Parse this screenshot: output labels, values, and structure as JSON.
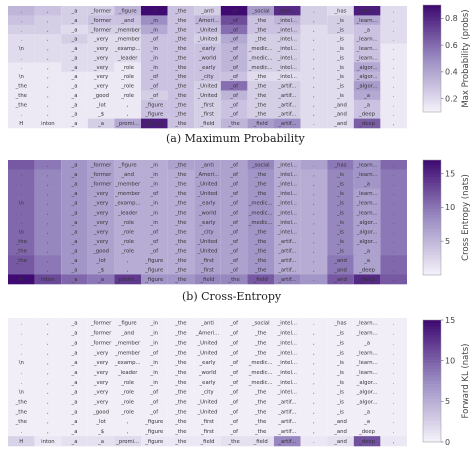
{
  "chart_data": {
    "type": "heatmap",
    "tokens": [
      [
        ".",
        ",",
        "_a",
        "_former",
        "_figure",
        "_in",
        "_the",
        "_anti",
        "_of",
        "_social",
        "_intel...",
        ".",
        "_has",
        "_learn...",
        "."
      ],
      [
        ".",
        ",",
        "_a",
        "_former",
        "_and",
        "_in",
        "_the",
        "_Ameri...",
        "_of",
        "_the",
        "_intel...",
        ",",
        "_is",
        "_learn...",
        "."
      ],
      [
        ".",
        ",",
        "_a",
        "_former",
        "_member",
        "_in",
        "_the",
        "_United",
        "_of",
        "_the",
        "_intel...",
        ",",
        "_is",
        "_a",
        "."
      ],
      [
        ".",
        ",",
        "_a",
        "_very",
        "_member",
        "_of",
        "_the",
        "_United",
        "_of",
        "_the",
        "_intel...",
        ",",
        "_is",
        "_learn...",
        "."
      ],
      [
        "\\n",
        ",",
        "_a",
        "_very",
        "_examp...",
        "_in",
        "_the",
        "_early",
        "_of",
        "_medic...",
        "_intel...",
        ",",
        "_is",
        "_learn...",
        "."
      ],
      [
        ".",
        ",",
        "_a",
        "_very",
        "_leader",
        "_in",
        "_the",
        "_world",
        "_of",
        "_medic...",
        "_intel...",
        ",",
        "_is",
        "_learn...",
        "."
      ],
      [
        ".",
        ",",
        "_a",
        "_very",
        "_role",
        "_in",
        "_the",
        "_early",
        "_of",
        "_medic...",
        "_intel...",
        ",",
        "_is",
        "_algor...",
        "."
      ],
      [
        "\\n",
        ",",
        "_a",
        "_very",
        "_role",
        "_of",
        "_the",
        "_city",
        "_of",
        "_the",
        "_intel...",
        ",",
        "_is",
        "_algor...",
        "."
      ],
      [
        "_the",
        ",",
        "_a",
        "_very",
        "_role",
        "_of",
        "_the",
        "_United",
        "_of",
        "_the",
        "_artif...",
        ",",
        "_is",
        "_algor...",
        "."
      ],
      [
        "_the",
        ",",
        "_a",
        "_good",
        "_role",
        "_of",
        "_the",
        "_United",
        "_of",
        "_the",
        "_artif...",
        ",",
        "_is",
        "_a",
        "."
      ],
      [
        "_the",
        ",",
        "_a",
        "_lot",
        ",",
        "_figure",
        "_the",
        "_first",
        "_of",
        "_the",
        "_artif...",
        ",",
        "_and",
        "_a",
        "."
      ],
      [
        ".",
        ",",
        "_a",
        "_$",
        ",",
        "_figure",
        "_the",
        "_first",
        "_of",
        "_the",
        "_artif...",
        ",",
        "_and",
        "_deep",
        "."
      ],
      [
        "H",
        "inton",
        "_a",
        "_a",
        "_promi...",
        "_figure",
        "_the",
        "_field",
        "_the",
        "_field",
        "_artif...",
        ".",
        "_and",
        "_deep",
        ","
      ]
    ],
    "panels": [
      {
        "caption": "(a) Maximum Probability",
        "colorbar_label": "Max Probability (probs)",
        "colorbar_ticks": [
          "0.2",
          "0.4",
          "0.6",
          "0.8"
        ],
        "range": [
          0.1,
          0.9
        ],
        "values": [
          [
            0.35,
            0.3,
            0.25,
            0.25,
            0.35,
            0.9,
            0.3,
            0.25,
            0.95,
            0.45,
            0.8,
            0.25,
            0.2,
            0.85,
            0.2
          ],
          [
            0.3,
            0.25,
            0.25,
            0.3,
            0.3,
            0.5,
            0.3,
            0.35,
            0.7,
            0.3,
            0.35,
            0.25,
            0.25,
            0.4,
            0.2
          ],
          [
            0.25,
            0.25,
            0.2,
            0.25,
            0.25,
            0.4,
            0.3,
            0.3,
            0.6,
            0.3,
            0.3,
            0.2,
            0.25,
            0.3,
            0.2
          ],
          [
            0.2,
            0.2,
            0.25,
            0.2,
            0.2,
            0.3,
            0.3,
            0.25,
            0.4,
            0.25,
            0.25,
            0.2,
            0.2,
            0.3,
            0.2
          ],
          [
            0.2,
            0.2,
            0.2,
            0.2,
            0.2,
            0.3,
            0.3,
            0.3,
            0.35,
            0.25,
            0.25,
            0.2,
            0.2,
            0.3,
            0.15
          ],
          [
            0.2,
            0.2,
            0.2,
            0.2,
            0.2,
            0.3,
            0.3,
            0.3,
            0.35,
            0.25,
            0.25,
            0.2,
            0.2,
            0.3,
            0.15
          ],
          [
            0.15,
            0.15,
            0.2,
            0.2,
            0.15,
            0.3,
            0.3,
            0.3,
            0.35,
            0.25,
            0.25,
            0.2,
            0.2,
            0.4,
            0.15
          ],
          [
            0.15,
            0.15,
            0.15,
            0.15,
            0.15,
            0.3,
            0.3,
            0.3,
            0.3,
            0.2,
            0.2,
            0.2,
            0.2,
            0.35,
            0.15
          ],
          [
            0.15,
            0.15,
            0.15,
            0.15,
            0.15,
            0.3,
            0.3,
            0.25,
            0.6,
            0.25,
            0.25,
            0.2,
            0.2,
            0.45,
            0.15
          ],
          [
            0.15,
            0.15,
            0.15,
            0.15,
            0.15,
            0.25,
            0.3,
            0.25,
            0.35,
            0.25,
            0.25,
            0.2,
            0.2,
            0.4,
            0.15
          ],
          [
            0.15,
            0.15,
            0.15,
            0.15,
            0.15,
            0.3,
            0.3,
            0.25,
            0.3,
            0.25,
            0.25,
            0.2,
            0.2,
            0.3,
            0.15
          ],
          [
            0.15,
            0.15,
            0.15,
            0.15,
            0.15,
            0.3,
            0.3,
            0.25,
            0.3,
            0.25,
            0.25,
            0.2,
            0.2,
            0.3,
            0.15
          ],
          [
            0.15,
            0.15,
            0.15,
            0.25,
            0.4,
            0.85,
            0.3,
            0.25,
            0.35,
            0.45,
            0.5,
            0.2,
            0.2,
            0.65,
            0.15
          ]
        ]
      },
      {
        "caption": "(b) Cross-Entropy",
        "colorbar_label": "Cross Entropy (nats)",
        "colorbar_ticks": [
          "5",
          "10",
          "15"
        ],
        "range": [
          0,
          17
        ],
        "values": [
          [
            12,
            10,
            8,
            7,
            6,
            6,
            7,
            7,
            7,
            9,
            6,
            7,
            10,
            8,
            11
          ],
          [
            11,
            9,
            8,
            7,
            6,
            6,
            6,
            7,
            7,
            8,
            6,
            6,
            9,
            8,
            10
          ],
          [
            11,
            9,
            8,
            7,
            6,
            6,
            6,
            7,
            7,
            8,
            6,
            6,
            9,
            8,
            10
          ],
          [
            11,
            9,
            8,
            7,
            6,
            6,
            6,
            7,
            7,
            8,
            6,
            6,
            9,
            7,
            10
          ],
          [
            11,
            9,
            8,
            7,
            6,
            6,
            6,
            7,
            7,
            8,
            6,
            6,
            9,
            7,
            10
          ],
          [
            11,
            9,
            8,
            7,
            6,
            6,
            6,
            7,
            7,
            8,
            6,
            6,
            9,
            7,
            10
          ],
          [
            11,
            9,
            8,
            7,
            6,
            6,
            6,
            7,
            7,
            8,
            6,
            6,
            9,
            7,
            10
          ],
          [
            11,
            9,
            8,
            7,
            6,
            6,
            6,
            7,
            7,
            8,
            6,
            6,
            9,
            7,
            10
          ],
          [
            11,
            9,
            8,
            7,
            6,
            6,
            6,
            7,
            7,
            8,
            6,
            6,
            9,
            7,
            10
          ],
          [
            11,
            9,
            8,
            7,
            6,
            6,
            6,
            7,
            7,
            8,
            6,
            6,
            9,
            7,
            10
          ],
          [
            12,
            10,
            8,
            7,
            6,
            6,
            6,
            7,
            7,
            8,
            6,
            6,
            10,
            7,
            11
          ],
          [
            12,
            10,
            8,
            7,
            6,
            6,
            6,
            7,
            7,
            8,
            6,
            6,
            10,
            7,
            11
          ],
          [
            17,
            13,
            11,
            10,
            14,
            8,
            8,
            9,
            9,
            12,
            9,
            8,
            12,
            15,
            12
          ]
        ]
      },
      {
        "caption": "",
        "colorbar_label": "Forward KL (nats)",
        "colorbar_ticks": [
          "0",
          "5",
          "10",
          "15"
        ],
        "range": [
          0,
          15
        ],
        "values": [
          [
            0.5,
            0.5,
            0.5,
            0.5,
            0.5,
            0.5,
            0.5,
            0.5,
            0.5,
            0.5,
            0.5,
            0.5,
            0.5,
            0.5,
            0.5
          ],
          [
            0.5,
            0.5,
            0.5,
            0.5,
            0.5,
            0.5,
            0.5,
            0.5,
            0.5,
            0.5,
            0.5,
            0.5,
            0.5,
            0.5,
            0.5
          ],
          [
            0.5,
            0.5,
            0.5,
            0.5,
            0.5,
            0.5,
            0.5,
            0.5,
            0.5,
            0.5,
            0.5,
            0.5,
            0.5,
            0.5,
            0.5
          ],
          [
            0.5,
            0.5,
            0.5,
            0.5,
            0.5,
            0.5,
            0.5,
            0.5,
            0.5,
            0.5,
            0.5,
            0.5,
            0.5,
            0.5,
            0.5
          ],
          [
            0.5,
            0.5,
            0.5,
            0.5,
            0.5,
            0.5,
            0.5,
            0.5,
            0.5,
            0.5,
            0.5,
            0.5,
            0.5,
            0.5,
            0.5
          ],
          [
            0.5,
            0.5,
            0.5,
            0.5,
            0.5,
            0.5,
            0.5,
            0.5,
            0.5,
            0.5,
            0.5,
            0.5,
            0.5,
            0.5,
            0.5
          ],
          [
            0.5,
            0.5,
            0.5,
            0.5,
            0.5,
            0.5,
            0.5,
            0.5,
            0.5,
            0.5,
            0.5,
            0.5,
            0.5,
            0.5,
            0.5
          ],
          [
            0.5,
            0.5,
            0.5,
            0.5,
            0.5,
            0.5,
            0.5,
            0.5,
            0.5,
            0.5,
            0.5,
            0.5,
            0.5,
            0.5,
            0.5
          ],
          [
            0.5,
            0.5,
            0.5,
            0.5,
            0.5,
            0.5,
            0.5,
            0.5,
            0.5,
            0.5,
            0.5,
            0.5,
            0.5,
            0.5,
            0.5
          ],
          [
            0.5,
            0.5,
            0.5,
            0.5,
            0.5,
            0.5,
            0.5,
            0.5,
            0.5,
            0.5,
            0.5,
            0.5,
            0.5,
            0.5,
            0.5
          ],
          [
            0.5,
            0.5,
            0.5,
            0.5,
            0.5,
            0.5,
            0.5,
            0.5,
            0.5,
            0.5,
            0.5,
            0.5,
            0.5,
            0.5,
            0.5
          ],
          [
            0.5,
            0.5,
            0.5,
            0.5,
            0.5,
            0.5,
            0.5,
            0.5,
            0.5,
            0.5,
            0.5,
            0.5,
            0.5,
            0.5,
            0.5
          ],
          [
            2.5,
            1.0,
            1.5,
            1.5,
            2.0,
            1.0,
            1.0,
            1.0,
            1.5,
            1.5,
            8.0,
            1.0,
            1.5,
            11.0,
            1.0
          ]
        ]
      }
    ],
    "colormap": {
      "low": "#f7f5fb",
      "mid": "#9d8fc4",
      "high": "#3f0b72"
    }
  },
  "captions": {
    "a": "(a) Maximum Probability",
    "b": "(b) Cross-Entropy"
  }
}
